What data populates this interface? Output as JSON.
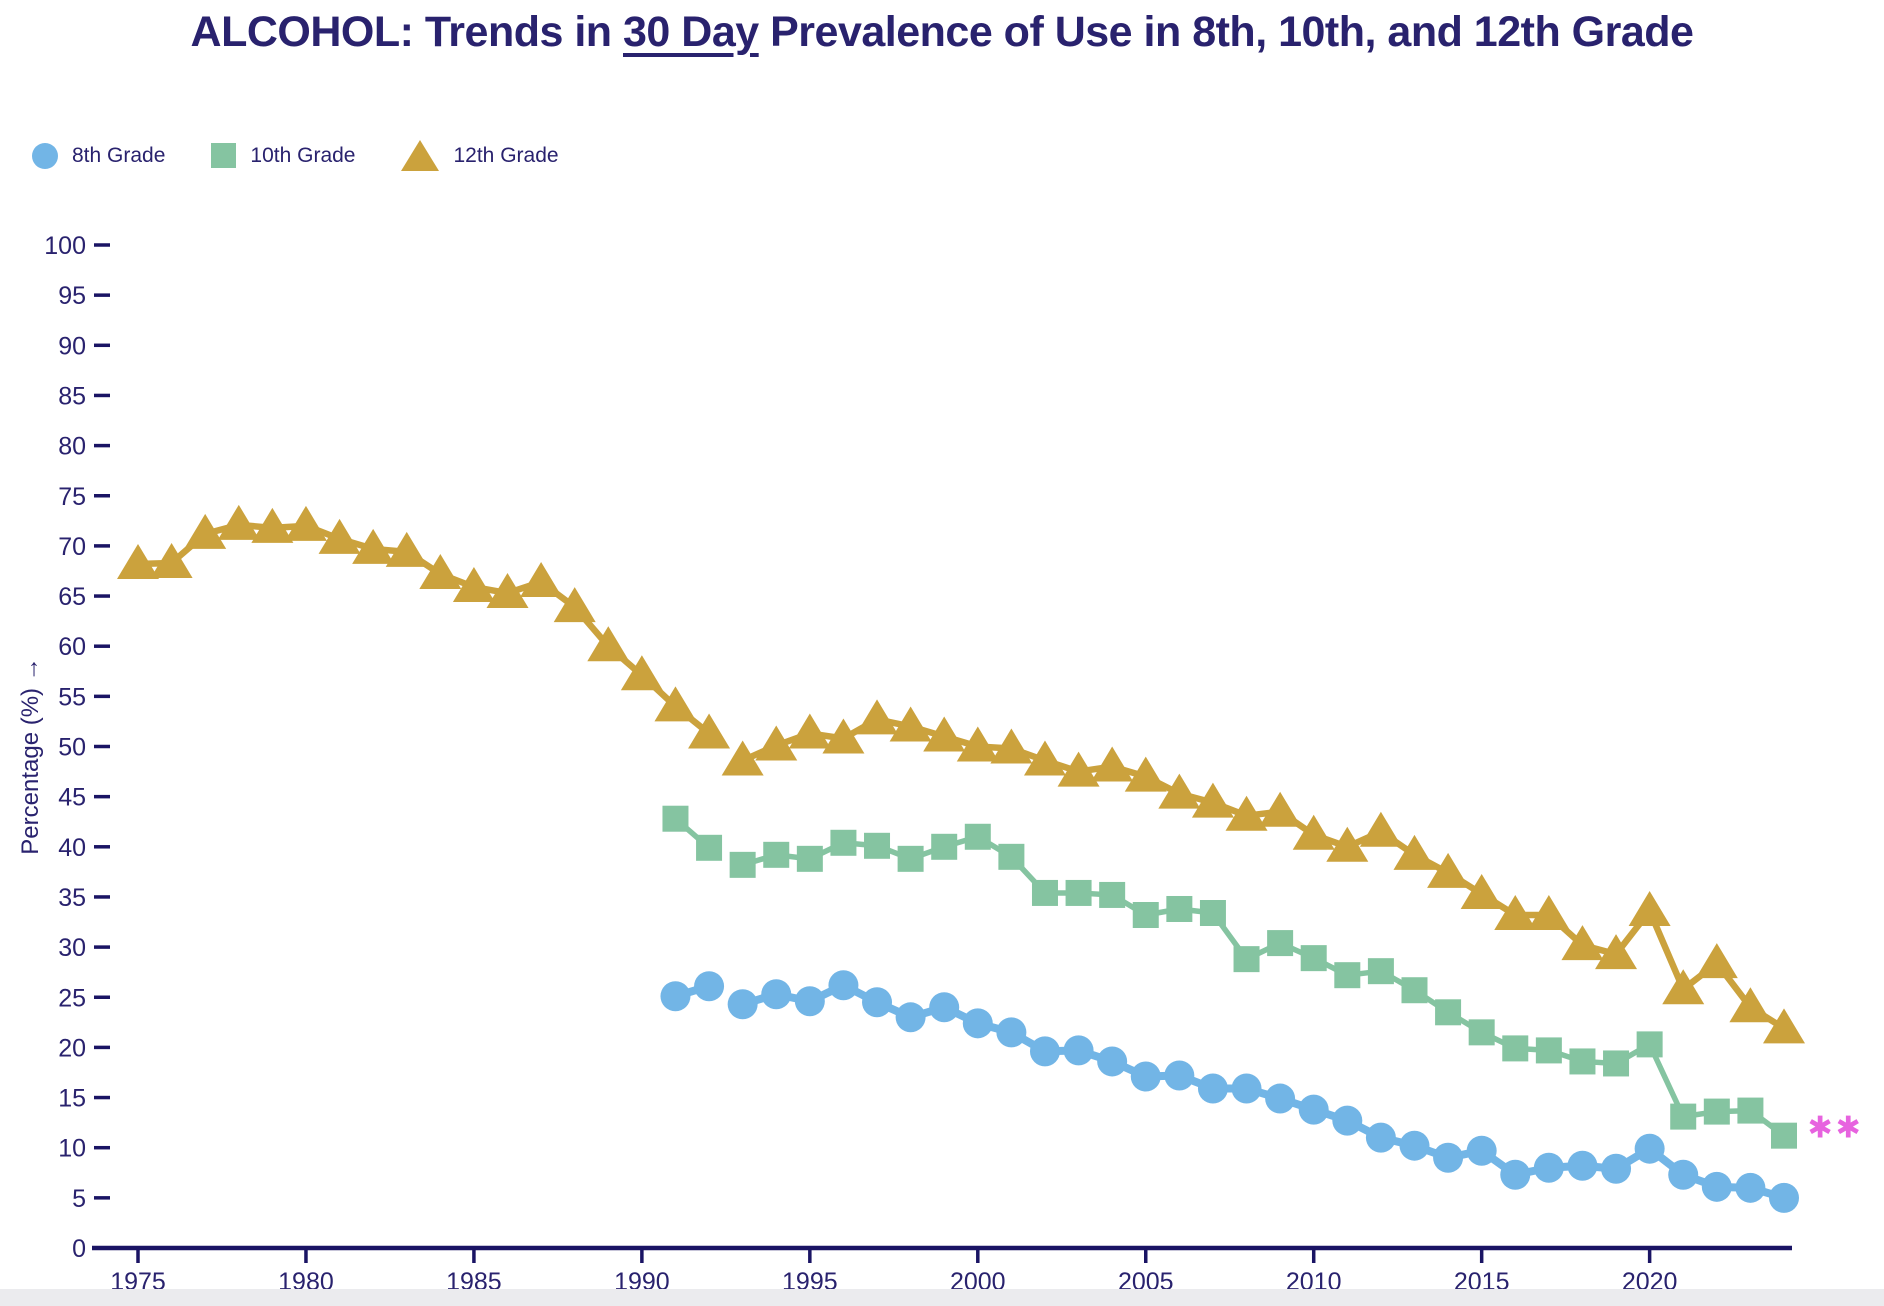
{
  "page": {
    "title": {
      "prefix": "ALCOHOL: Trends in ",
      "underlined": "30 Day",
      "suffix": " Prevalence of Use in 8th, 10th, and 12th Grade"
    }
  },
  "legend": [
    {
      "label": "8th Grade",
      "marker": "circle",
      "color": "#72B5E6"
    },
    {
      "label": "10th Grade",
      "marker": "square",
      "color": "#85C4A1"
    },
    {
      "label": "12th Grade",
      "marker": "triangle",
      "color": "#CBA23D"
    }
  ],
  "axis_colors": {
    "text": "#29226E",
    "line": "#1A1464"
  },
  "chart_data": {
    "type": "line",
    "title": "ALCOHOL: Trends in 30 Day Prevalence of Use in 8th, 10th, and 12th Grade",
    "ylabel": "Percentage (%) →",
    "xlabel": "",
    "ylim": [
      0,
      100
    ],
    "yticks": [
      0,
      5,
      10,
      15,
      20,
      25,
      30,
      35,
      40,
      45,
      50,
      55,
      60,
      65,
      70,
      75,
      80,
      85,
      90,
      95,
      100
    ],
    "xlim": [
      1975,
      2024
    ],
    "xticks": [
      1975,
      1980,
      1985,
      1990,
      1995,
      2000,
      2005,
      2010,
      2015,
      2020
    ],
    "grid": false,
    "legend_position": "top-left",
    "series": [
      {
        "name": "8th Grade",
        "marker": "circle",
        "color": "#72B5E6",
        "segments": [
          {
            "start_year": 1991,
            "values": [
              25.1,
              26.1
            ]
          },
          {
            "start_year": 1993,
            "values": [
              24.3,
              25.3,
              24.6,
              26.2,
              24.5,
              23.0,
              24.0,
              22.4,
              21.5,
              19.6,
              19.7,
              18.6,
              17.1,
              17.2,
              15.9,
              15.9,
              14.9,
              13.8,
              12.7,
              11.0,
              10.2,
              9.0,
              9.7,
              7.3,
              8.0,
              8.2,
              7.9,
              9.9,
              7.3,
              6.1,
              6.0,
              5.0
            ]
          }
        ]
      },
      {
        "name": "10th Grade",
        "marker": "square",
        "color": "#85C4A1",
        "segments": [
          {
            "start_year": 1991,
            "values": [
              42.8,
              39.9
            ]
          },
          {
            "start_year": 1993,
            "values": [
              38.2,
              39.2,
              38.8,
              40.4,
              40.1,
              38.8,
              40.0,
              41.0,
              39.0,
              35.4,
              35.4,
              35.2,
              33.2,
              33.8,
              33.4,
              28.8,
              30.4,
              28.9,
              27.2,
              27.6,
              25.7,
              23.5,
              21.5,
              19.9,
              19.7,
              18.6,
              18.4,
              20.3,
              13.1,
              13.6,
              13.7,
              11.2
            ]
          }
        ]
      },
      {
        "name": "12th Grade",
        "marker": "triangle",
        "color": "#CBA23D",
        "segments": [
          {
            "start_year": 1975,
            "values": [
              68.2,
              68.3,
              71.2,
              72.1,
              71.8,
              72.0,
              70.7,
              69.7,
              69.4,
              67.2,
              65.9,
              65.3,
              66.4,
              63.9,
              60.0,
              57.1,
              54.0,
              51.3
            ]
          },
          {
            "start_year": 1993,
            "values": [
              48.6,
              50.1,
              51.3,
              50.8,
              52.7,
              52.0,
              51.0,
              50.0,
              49.8,
              48.6,
              47.5,
              48.0,
              47.0,
              45.3,
              44.4,
              43.1,
              43.5,
              41.2,
              40.0,
              41.5,
              39.2,
              37.4,
              35.3,
              33.2,
              33.2,
              30.2,
              29.3,
              33.6,
              25.8,
              28.4,
              24.0,
              21.9
            ]
          }
        ]
      }
    ],
    "annotation": {
      "text": "✱✱",
      "color": "#E763DF",
      "x_year": 2024.7,
      "value": 12.0
    }
  }
}
